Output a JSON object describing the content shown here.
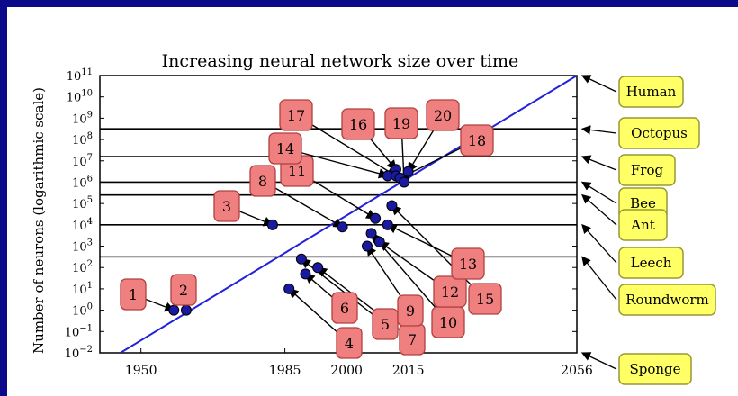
{
  "chart_data": {
    "type": "scatter",
    "title": "Increasing neural network size over time",
    "ylabel": "Number of neurons (logarithmic scale)",
    "xlabel": "",
    "y_scale": "log",
    "xlim": [
      1940,
      2056
    ],
    "ylim_exp": [
      -2,
      11
    ],
    "x_ticks": [
      "1950",
      "1985",
      "2000",
      "2015",
      "2056"
    ],
    "x_tick_values": [
      1950,
      1985,
      2000,
      2015,
      2056
    ],
    "y_tick_exps": [
      -2,
      -1,
      0,
      1,
      2,
      3,
      4,
      5,
      6,
      7,
      8,
      9,
      10,
      11
    ],
    "trend_line": {
      "from": [
        1945,
        -2
      ],
      "to": [
        2056,
        11
      ],
      "color": "#2222dd"
    },
    "reference_lines": [
      {
        "name": "Human",
        "exp": 11
      },
      {
        "name": "Octopus",
        "exp": 8.5
      },
      {
        "name": "Frog",
        "exp": 7.2
      },
      {
        "name": "Bee",
        "exp": 6.0
      },
      {
        "name": "Ant",
        "exp": 5.4
      },
      {
        "name": "Leech",
        "exp": 4.0
      },
      {
        "name": "Roundworm",
        "exp": 2.5
      },
      {
        "name": "Sponge",
        "exp": -2
      }
    ],
    "networks": [
      {
        "label": "1",
        "year": 1958,
        "exp": 0.0
      },
      {
        "label": "2",
        "year": 1961,
        "exp": 0.0
      },
      {
        "label": "3",
        "year": 1982,
        "exp": 4.0
      },
      {
        "label": "4",
        "year": 1986,
        "exp": 1.0
      },
      {
        "label": "5",
        "year": 1989,
        "exp": 2.4
      },
      {
        "label": "6",
        "year": 1990,
        "exp": 1.7
      },
      {
        "label": "7",
        "year": 1993,
        "exp": 2.0
      },
      {
        "label": "8",
        "year": 1999,
        "exp": 3.9
      },
      {
        "label": "9",
        "year": 2005,
        "exp": 3.0
      },
      {
        "label": "10",
        "year": 2006,
        "exp": 3.6
      },
      {
        "label": "11",
        "year": 2007,
        "exp": 4.3
      },
      {
        "label": "12",
        "year": 2008,
        "exp": 3.2
      },
      {
        "label": "13",
        "year": 2010,
        "exp": 4.0
      },
      {
        "label": "14",
        "year": 2010,
        "exp": 6.3
      },
      {
        "label": "15",
        "year": 2011,
        "exp": 4.9
      },
      {
        "label": "16",
        "year": 2012,
        "exp": 6.6
      },
      {
        "label": "17",
        "year": 2012,
        "exp": 6.3
      },
      {
        "label": "18",
        "year": 2013,
        "exp": 6.2
      },
      {
        "label": "19",
        "year": 2014,
        "exp": 6.0
      },
      {
        "label": "20",
        "year": 2015,
        "exp": 6.5
      }
    ]
  },
  "colors": {
    "background_frame": "#0a0a8a",
    "point": "#1a1aa0",
    "badge_fill": "#f08080",
    "badge_stroke": "#b04040",
    "species_fill": "#ffff66",
    "species_stroke": "#999933"
  }
}
